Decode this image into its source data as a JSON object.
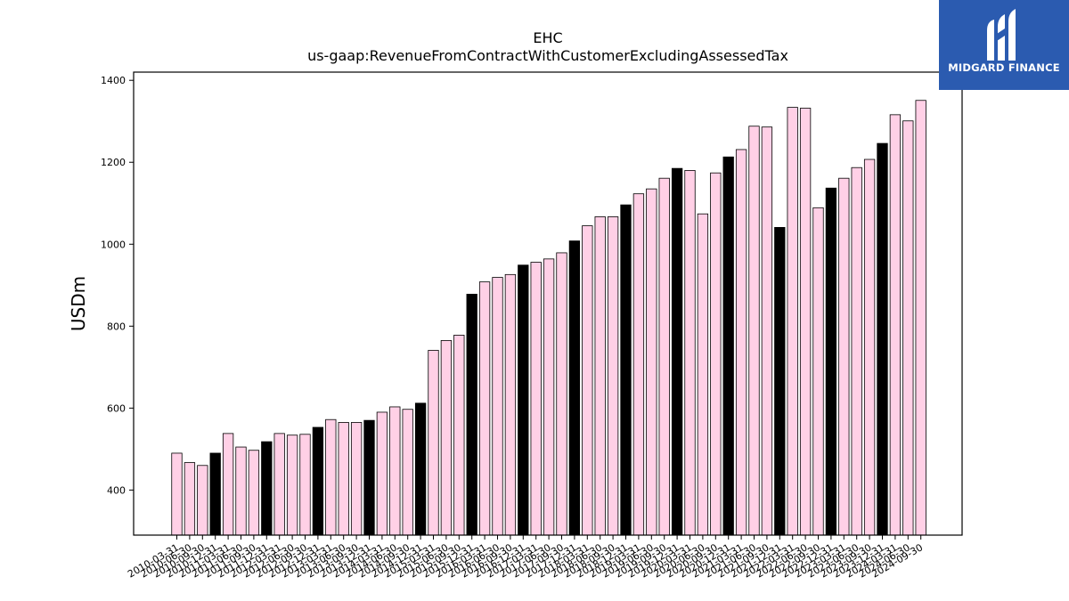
{
  "logo": {
    "brand_text": "MIDGARD FINANCE",
    "icon": "midgard-m-logo-icon",
    "background": "#2b5bb0"
  },
  "colors": {
    "annual_bar": "#000000",
    "quarter_bar": "#ffd0e6",
    "bar_edge": "#000000"
  },
  "chart_data": {
    "type": "bar",
    "title": "EHC",
    "subtitle": "us-gaap:RevenueFromContractWithCustomerExcludingAssessedTax",
    "xlabel": "",
    "ylabel": "USDm",
    "ylim": [
      290,
      1420
    ],
    "yticks": [
      400,
      600,
      800,
      1000,
      1200,
      1400
    ],
    "grid": false,
    "legend": "none",
    "categories": [
      "2010-03-31",
      "2010-06-30",
      "2010-09-30",
      "2010-12-31",
      "2011-03-31",
      "2011-06-30",
      "2011-09-30",
      "2011-12-31",
      "2012-03-31",
      "2012-06-30",
      "2012-09-30",
      "2012-12-31",
      "2013-03-31",
      "2013-06-30",
      "2013-09-30",
      "2013-12-31",
      "2014-03-31",
      "2014-06-30",
      "2014-09-30",
      "2014-12-31",
      "2015-03-31",
      "2015-06-30",
      "2015-09-30",
      "2015-12-31",
      "2016-03-31",
      "2016-06-30",
      "2016-09-30",
      "2016-12-31",
      "2017-03-31",
      "2017-06-30",
      "2017-09-30",
      "2017-12-31",
      "2018-03-31",
      "2018-06-30",
      "2018-09-30",
      "2018-12-31",
      "2019-03-31",
      "2019-06-30",
      "2019-09-30",
      "2019-12-31",
      "2020-03-31",
      "2020-06-30",
      "2020-09-30",
      "2020-12-31",
      "2021-03-31",
      "2021-06-30",
      "2021-09-30",
      "2021-12-31",
      "2022-03-31",
      "2022-06-30",
      "2022-09-30",
      "2022-12-31",
      "2023-03-31",
      "2023-06-30",
      "2023-09-30",
      "2023-12-31",
      "2024-03-31",
      "2024-06-30",
      "2024-09-30"
    ],
    "values": [
      490,
      467,
      460,
      490,
      538,
      505,
      497,
      518,
      538,
      534,
      536,
      553,
      572,
      565,
      565,
      570,
      590,
      603,
      597,
      612,
      741,
      765,
      778,
      878,
      908,
      919,
      926,
      949,
      956,
      964,
      979,
      1008,
      1045,
      1067,
      1067,
      1096,
      1123,
      1135,
      1161,
      1185,
      1180,
      1074,
      1174,
      1213,
      1231,
      1288,
      1286,
      1041,
      1334,
      1332,
      1089,
      1137,
      1161,
      1187,
      1207,
      1246,
      1316,
      1301,
      1351
    ],
    "bar_kind": [
      "q",
      "q",
      "q",
      "a",
      "q",
      "q",
      "q",
      "a",
      "q",
      "q",
      "q",
      "a",
      "q",
      "q",
      "q",
      "a",
      "q",
      "q",
      "q",
      "a",
      "q",
      "q",
      "q",
      "a",
      "q",
      "q",
      "q",
      "a",
      "q",
      "q",
      "q",
      "a",
      "q",
      "q",
      "q",
      "a",
      "q",
      "q",
      "q",
      "a",
      "q",
      "q",
      "q",
      "a",
      "q",
      "q",
      "q",
      "a",
      "q",
      "q",
      "q",
      "a",
      "q",
      "q",
      "q",
      "a",
      "q",
      "q",
      "q"
    ]
  }
}
